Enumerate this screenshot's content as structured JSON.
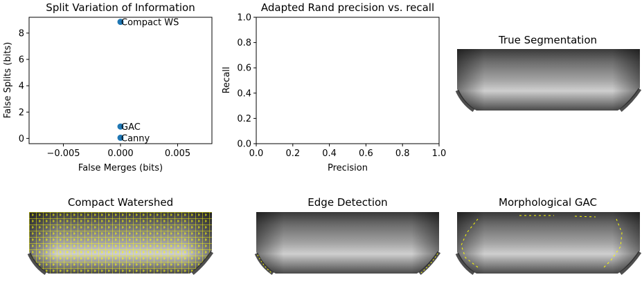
{
  "chart_data": [
    {
      "type": "scatter",
      "title": "Split Variation of Information",
      "xlabel": "False Merges (bits)",
      "ylabel": "False Splits (bits)",
      "xlim": [
        -0.008,
        0.008
      ],
      "ylim": [
        -0.4,
        9.2
      ],
      "xticks": [
        -0.005,
        0,
        0.005
      ],
      "xtick_labels": [
        "−0.005",
        "0.000",
        "0.005"
      ],
      "yticks": [
        0,
        2,
        4,
        6,
        8
      ],
      "ytick_labels": [
        "0",
        "2",
        "4",
        "6",
        "8"
      ],
      "marker_color": "#1f77b4",
      "points": [
        {
          "label": "Compact WS",
          "x": 0,
          "y": 8.85
        },
        {
          "label": "GAC",
          "x": 0,
          "y": 0.9
        },
        {
          "label": "Canny",
          "x": 0,
          "y": 0.05
        }
      ],
      "grid": false
    },
    {
      "type": "line",
      "title": "Adapted Rand precision vs. recall",
      "xlabel": "Precision",
      "ylabel": "Recall",
      "xlim": [
        0,
        1
      ],
      "ylim": [
        0,
        1
      ],
      "xticks": [
        0,
        0.2,
        0.4,
        0.6,
        0.8,
        1.0
      ],
      "xtick_labels": [
        "0.0",
        "0.2",
        "0.4",
        "0.6",
        "0.8",
        "1.0"
      ],
      "yticks": [
        0,
        0.2,
        0.4,
        0.6,
        0.8,
        1.0
      ],
      "ytick_labels": [
        "0.0",
        "0.2",
        "0.4",
        "0.6",
        "0.8",
        "1.0"
      ],
      "series": [],
      "grid": false
    }
  ],
  "images": [
    {
      "title": "True Segmentation",
      "contour_color": ""
    },
    {
      "title": "Compact Watershed",
      "contour_color": "#ffff00"
    },
    {
      "title": "Edge Detection",
      "contour_color": "#ffff00"
    },
    {
      "title": "Morphological GAC",
      "contour_color": "#ffff00"
    }
  ]
}
